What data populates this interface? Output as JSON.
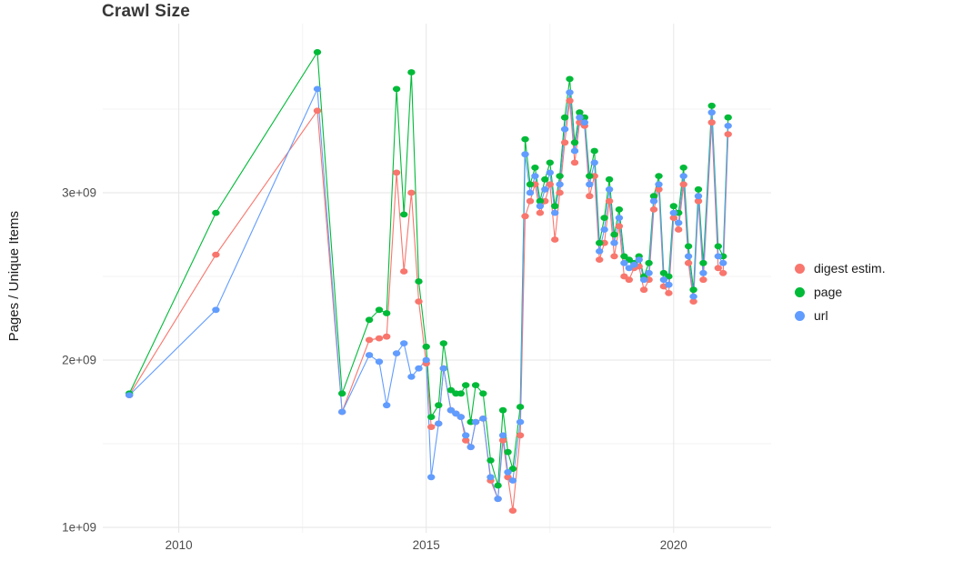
{
  "chart_data": {
    "type": "line",
    "title": "Crawl Size",
    "xlabel": "",
    "ylabel": "Pages / Unique Items",
    "x_ticks": [
      2010,
      2015,
      2020
    ],
    "x_tick_labels": [
      "2010",
      "2015",
      "2020"
    ],
    "x_minor_ticks": [
      2012.5,
      2017.5
    ],
    "y_ticks": [
      1000000000.0,
      2000000000.0,
      3000000000.0
    ],
    "y_tick_labels": [
      "1e+09",
      "2e+09",
      "3e+09"
    ],
    "y_minor_ticks": [
      1500000000.0,
      2500000000.0,
      3500000000.0
    ],
    "xlim": [
      2008.5,
      2021.97
    ],
    "ylim": [
      1000000000.0,
      4000000000.0
    ],
    "grid": true,
    "legend_position": "right",
    "series": [
      {
        "name": "digest estim.",
        "color": "#F8766D",
        "points": [
          [
            2009.0,
            1790000000.0
          ],
          [
            2010.75,
            2630000000.0
          ],
          [
            2012.8,
            3490000000.0
          ],
          [
            2013.3,
            1690000000.0
          ],
          [
            2013.85,
            2120000000.0
          ],
          [
            2014.05,
            2130000000.0
          ],
          [
            2014.2,
            2140000000.0
          ],
          [
            2014.4,
            3120000000.0
          ],
          [
            2014.55,
            2530000000.0
          ],
          [
            2014.7,
            3000000000.0
          ],
          [
            2014.85,
            2350000000.0
          ],
          [
            2015.0,
            1980000000.0
          ],
          [
            2015.1,
            1600000000.0
          ],
          [
            2015.25,
            1620000000.0
          ],
          [
            2015.35,
            1950000000.0
          ],
          [
            2015.5,
            1700000000.0
          ],
          [
            2015.6,
            1680000000.0
          ],
          [
            2015.7,
            1660000000.0
          ],
          [
            2015.8,
            1520000000.0
          ],
          [
            2015.9,
            1480000000.0
          ],
          [
            2016.0,
            1630000000.0
          ],
          [
            2016.15,
            1650000000.0
          ],
          [
            2016.3,
            1280000000.0
          ],
          [
            2016.45,
            1170000000.0
          ],
          [
            2016.55,
            1520000000.0
          ],
          [
            2016.65,
            1300000000.0
          ],
          [
            2016.75,
            1100000000.0
          ],
          [
            2016.9,
            1550000000.0
          ],
          [
            2017.0,
            2860000000.0
          ],
          [
            2017.1,
            2950000000.0
          ],
          [
            2017.2,
            3050000000.0
          ],
          [
            2017.3,
            2880000000.0
          ],
          [
            2017.4,
            2950000000.0
          ],
          [
            2017.5,
            3050000000.0
          ],
          [
            2017.6,
            2720000000.0
          ],
          [
            2017.7,
            3000000000.0
          ],
          [
            2017.8,
            3300000000.0
          ],
          [
            2017.9,
            3550000000.0
          ],
          [
            2018.0,
            3180000000.0
          ],
          [
            2018.1,
            3420000000.0
          ],
          [
            2018.2,
            3400000000.0
          ],
          [
            2018.3,
            2980000000.0
          ],
          [
            2018.4,
            3100000000.0
          ],
          [
            2018.5,
            2600000000.0
          ],
          [
            2018.6,
            2700000000.0
          ],
          [
            2018.7,
            2950000000.0
          ],
          [
            2018.8,
            2620000000.0
          ],
          [
            2018.9,
            2800000000.0
          ],
          [
            2019.0,
            2500000000.0
          ],
          [
            2019.1,
            2480000000.0
          ],
          [
            2019.2,
            2550000000.0
          ],
          [
            2019.3,
            2560000000.0
          ],
          [
            2019.4,
            2420000000.0
          ],
          [
            2019.5,
            2480000000.0
          ],
          [
            2019.6,
            2900000000.0
          ],
          [
            2019.7,
            3020000000.0
          ],
          [
            2019.8,
            2440000000.0
          ],
          [
            2019.9,
            2400000000.0
          ],
          [
            2020.0,
            2850000000.0
          ],
          [
            2020.1,
            2780000000.0
          ],
          [
            2020.2,
            3050000000.0
          ],
          [
            2020.3,
            2580000000.0
          ],
          [
            2020.4,
            2350000000.0
          ],
          [
            2020.5,
            2950000000.0
          ],
          [
            2020.6,
            2480000000.0
          ],
          [
            2020.77,
            3420000000.0
          ],
          [
            2020.9,
            2550000000.0
          ],
          [
            2021.0,
            2520000000.0
          ],
          [
            2021.1,
            3350000000.0
          ]
        ]
      },
      {
        "name": "page",
        "color": "#00BA38",
        "points": [
          [
            2009.0,
            1800000000.0
          ],
          [
            2010.75,
            2880000000.0
          ],
          [
            2012.8,
            3840000000.0
          ],
          [
            2013.3,
            1800000000.0
          ],
          [
            2013.85,
            2240000000.0
          ],
          [
            2014.05,
            2300000000.0
          ],
          [
            2014.2,
            2280000000.0
          ],
          [
            2014.4,
            3620000000.0
          ],
          [
            2014.55,
            2870000000.0
          ],
          [
            2014.7,
            3720000000.0
          ],
          [
            2014.85,
            2470000000.0
          ],
          [
            2015.0,
            2080000000.0
          ],
          [
            2015.1,
            1660000000.0
          ],
          [
            2015.25,
            1730000000.0
          ],
          [
            2015.35,
            2100000000.0
          ],
          [
            2015.5,
            1820000000.0
          ],
          [
            2015.6,
            1800000000.0
          ],
          [
            2015.7,
            1800000000.0
          ],
          [
            2015.8,
            1850000000.0
          ],
          [
            2015.9,
            1630000000.0
          ],
          [
            2016.0,
            1850000000.0
          ],
          [
            2016.15,
            1800000000.0
          ],
          [
            2016.3,
            1400000000.0
          ],
          [
            2016.45,
            1250000000.0
          ],
          [
            2016.55,
            1700000000.0
          ],
          [
            2016.65,
            1450000000.0
          ],
          [
            2016.75,
            1350000000.0
          ],
          [
            2016.9,
            1720000000.0
          ],
          [
            2017.0,
            3320000000.0
          ],
          [
            2017.1,
            3050000000.0
          ],
          [
            2017.2,
            3150000000.0
          ],
          [
            2017.3,
            2950000000.0
          ],
          [
            2017.4,
            3080000000.0
          ],
          [
            2017.5,
            3180000000.0
          ],
          [
            2017.6,
            2920000000.0
          ],
          [
            2017.7,
            3100000000.0
          ],
          [
            2017.8,
            3450000000.0
          ],
          [
            2017.9,
            3680000000.0
          ],
          [
            2018.0,
            3300000000.0
          ],
          [
            2018.1,
            3480000000.0
          ],
          [
            2018.2,
            3450000000.0
          ],
          [
            2018.3,
            3100000000.0
          ],
          [
            2018.4,
            3250000000.0
          ],
          [
            2018.5,
            2700000000.0
          ],
          [
            2018.6,
            2850000000.0
          ],
          [
            2018.7,
            3080000000.0
          ],
          [
            2018.8,
            2750000000.0
          ],
          [
            2018.9,
            2900000000.0
          ],
          [
            2019.0,
            2620000000.0
          ],
          [
            2019.1,
            2600000000.0
          ],
          [
            2019.2,
            2580000000.0
          ],
          [
            2019.3,
            2620000000.0
          ],
          [
            2019.4,
            2500000000.0
          ],
          [
            2019.5,
            2580000000.0
          ],
          [
            2019.6,
            2980000000.0
          ],
          [
            2019.7,
            3100000000.0
          ],
          [
            2019.8,
            2520000000.0
          ],
          [
            2019.9,
            2500000000.0
          ],
          [
            2020.0,
            2920000000.0
          ],
          [
            2020.1,
            2880000000.0
          ],
          [
            2020.2,
            3150000000.0
          ],
          [
            2020.3,
            2680000000.0
          ],
          [
            2020.4,
            2420000000.0
          ],
          [
            2020.5,
            3020000000.0
          ],
          [
            2020.6,
            2580000000.0
          ],
          [
            2020.77,
            3520000000.0
          ],
          [
            2020.9,
            2680000000.0
          ],
          [
            2021.0,
            2620000000.0
          ],
          [
            2021.1,
            3450000000.0
          ]
        ]
      },
      {
        "name": "url",
        "color": "#619CFF",
        "points": [
          [
            2009.0,
            1790000000.0
          ],
          [
            2010.75,
            2300000000.0
          ],
          [
            2012.8,
            3620000000.0
          ],
          [
            2013.3,
            1690000000.0
          ],
          [
            2013.85,
            2030000000.0
          ],
          [
            2014.05,
            1990000000.0
          ],
          [
            2014.2,
            1730000000.0
          ],
          [
            2014.4,
            2040000000.0
          ],
          [
            2014.55,
            2100000000.0
          ],
          [
            2014.7,
            1900000000.0
          ],
          [
            2014.85,
            1950000000.0
          ],
          [
            2015.0,
            2000000000.0
          ],
          [
            2015.1,
            1300000000.0
          ],
          [
            2015.25,
            1620000000.0
          ],
          [
            2015.35,
            1950000000.0
          ],
          [
            2015.5,
            1700000000.0
          ],
          [
            2015.6,
            1680000000.0
          ],
          [
            2015.7,
            1660000000.0
          ],
          [
            2015.8,
            1550000000.0
          ],
          [
            2015.9,
            1480000000.0
          ],
          [
            2016.0,
            1630000000.0
          ],
          [
            2016.15,
            1650000000.0
          ],
          [
            2016.3,
            1300000000.0
          ],
          [
            2016.45,
            1170000000.0
          ],
          [
            2016.55,
            1550000000.0
          ],
          [
            2016.65,
            1330000000.0
          ],
          [
            2016.75,
            1280000000.0
          ],
          [
            2016.9,
            1630000000.0
          ],
          [
            2017.0,
            3230000000.0
          ],
          [
            2017.1,
            3000000000.0
          ],
          [
            2017.2,
            3100000000.0
          ],
          [
            2017.3,
            2920000000.0
          ],
          [
            2017.4,
            3020000000.0
          ],
          [
            2017.5,
            3120000000.0
          ],
          [
            2017.6,
            2880000000.0
          ],
          [
            2017.7,
            3050000000.0
          ],
          [
            2017.8,
            3380000000.0
          ],
          [
            2017.9,
            3600000000.0
          ],
          [
            2018.0,
            3250000000.0
          ],
          [
            2018.1,
            3450000000.0
          ],
          [
            2018.2,
            3420000000.0
          ],
          [
            2018.3,
            3050000000.0
          ],
          [
            2018.4,
            3180000000.0
          ],
          [
            2018.5,
            2650000000.0
          ],
          [
            2018.6,
            2780000000.0
          ],
          [
            2018.7,
            3020000000.0
          ],
          [
            2018.8,
            2700000000.0
          ],
          [
            2018.9,
            2850000000.0
          ],
          [
            2019.0,
            2580000000.0
          ],
          [
            2019.1,
            2550000000.0
          ],
          [
            2019.2,
            2570000000.0
          ],
          [
            2019.3,
            2600000000.0
          ],
          [
            2019.4,
            2480000000.0
          ],
          [
            2019.5,
            2520000000.0
          ],
          [
            2019.6,
            2950000000.0
          ],
          [
            2019.7,
            3050000000.0
          ],
          [
            2019.8,
            2480000000.0
          ],
          [
            2019.9,
            2450000000.0
          ],
          [
            2020.0,
            2880000000.0
          ],
          [
            2020.1,
            2820000000.0
          ],
          [
            2020.2,
            3100000000.0
          ],
          [
            2020.3,
            2620000000.0
          ],
          [
            2020.4,
            2380000000.0
          ],
          [
            2020.5,
            2980000000.0
          ],
          [
            2020.6,
            2520000000.0
          ],
          [
            2020.77,
            3480000000.0
          ],
          [
            2020.9,
            2620000000.0
          ],
          [
            2021.0,
            2580000000.0
          ],
          [
            2021.1,
            3400000000.0
          ]
        ]
      }
    ]
  }
}
